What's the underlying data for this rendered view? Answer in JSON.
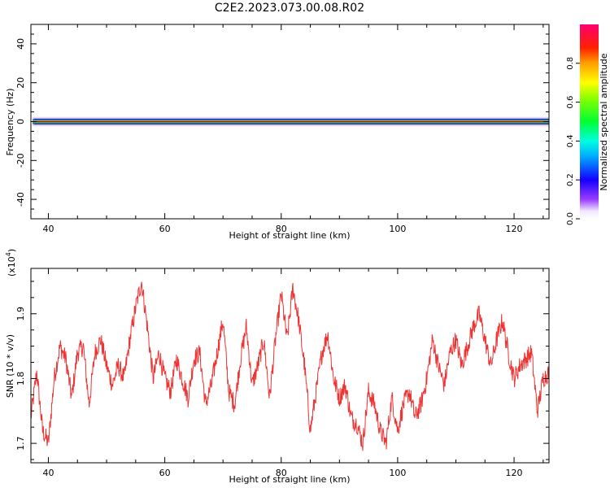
{
  "title": "C2E2.2023.073.00.08.R02",
  "colorbar": {
    "label": "Normalized spectral amplitude",
    "ticks": [
      "0.0",
      "0.2",
      "0.4",
      "0.6",
      "0.8"
    ],
    "range": [
      0,
      1
    ]
  },
  "chart_data": [
    {
      "type": "heatmap",
      "xlabel": "Height of straight line (km)",
      "ylabel": "Frequency (Hz)",
      "xlim": [
        37,
        126
      ],
      "ylim": [
        -50,
        50
      ],
      "xticks": [
        40,
        60,
        80,
        100,
        120
      ],
      "yticks": [
        -40,
        -20,
        0,
        20,
        40
      ],
      "ridge_frequency": 0,
      "band_halfwidth": 1.5
    },
    {
      "type": "line",
      "xlabel": "Height of straight line (km)",
      "ylabel": "SNR (10 * v/v)",
      "yscale_label": "(x10",
      "yscale_exp": "4",
      "xlim": [
        37,
        126
      ],
      "ylim": [
        1.67,
        1.97
      ],
      "xticks": [
        40,
        60,
        80,
        100,
        120
      ],
      "yticks": [
        1.7,
        1.8,
        1.9
      ],
      "line_color": "#ee3333",
      "x": [
        37,
        38,
        39,
        40,
        41,
        42,
        43,
        44,
        45,
        46,
        47,
        48,
        49,
        50,
        51,
        52,
        53,
        54,
        55,
        56,
        57,
        58,
        59,
        60,
        61,
        62,
        63,
        64,
        65,
        66,
        67,
        68,
        69,
        70,
        71,
        72,
        73,
        74,
        75,
        76,
        77,
        78,
        79,
        80,
        81,
        82,
        83,
        84,
        85,
        86,
        87,
        88,
        89,
        90,
        91,
        92,
        93,
        94,
        95,
        96,
        97,
        98,
        99,
        100,
        101,
        102,
        103,
        104,
        105,
        106,
        107,
        108,
        109,
        110,
        111,
        112,
        113,
        114,
        115,
        116,
        117,
        118,
        119,
        120,
        121,
        122,
        123,
        124,
        125,
        126
      ],
      "values": [
        1.74,
        1.81,
        1.72,
        1.7,
        1.8,
        1.85,
        1.83,
        1.77,
        1.84,
        1.85,
        1.76,
        1.84,
        1.86,
        1.82,
        1.79,
        1.82,
        1.8,
        1.86,
        1.91,
        1.95,
        1.88,
        1.8,
        1.84,
        1.8,
        1.78,
        1.83,
        1.8,
        1.77,
        1.83,
        1.84,
        1.76,
        1.79,
        1.84,
        1.89,
        1.78,
        1.76,
        1.83,
        1.88,
        1.79,
        1.82,
        1.86,
        1.77,
        1.86,
        1.93,
        1.86,
        1.94,
        1.89,
        1.82,
        1.72,
        1.78,
        1.84,
        1.87,
        1.8,
        1.77,
        1.79,
        1.74,
        1.73,
        1.7,
        1.78,
        1.76,
        1.72,
        1.7,
        1.77,
        1.72,
        1.76,
        1.78,
        1.74,
        1.76,
        1.8,
        1.86,
        1.82,
        1.79,
        1.84,
        1.86,
        1.82,
        1.85,
        1.88,
        1.9,
        1.86,
        1.82,
        1.86,
        1.89,
        1.84,
        1.8,
        1.82,
        1.83,
        1.84,
        1.75,
        1.8,
        1.81
      ]
    }
  ]
}
